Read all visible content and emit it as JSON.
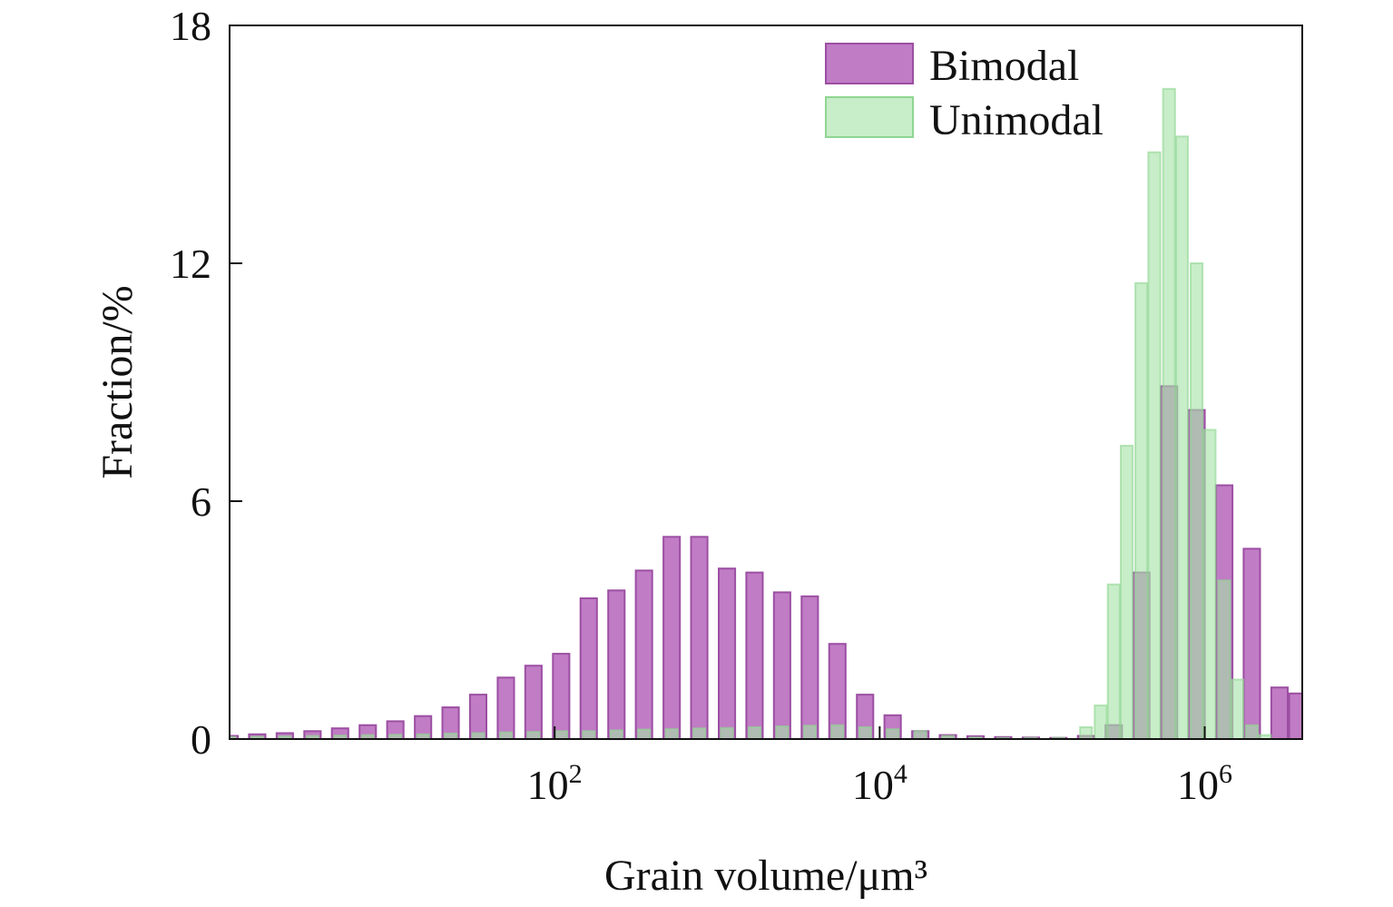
{
  "chart_data": {
    "type": "bar",
    "xlabel": "Grain volume/μm³",
    "ylabel": "Fraction/%",
    "xscale": "log",
    "xlim_log10": [
      0.0,
      6.6
    ],
    "ylim": [
      0,
      18
    ],
    "yticks": [
      "0",
      "6",
      "12",
      "18"
    ],
    "xticks": [
      {
        "log10": 2,
        "base": "10",
        "exp": "2"
      },
      {
        "log10": 4,
        "base": "10",
        "exp": "4"
      },
      {
        "log10": 6,
        "base": "10",
        "exp": "6"
      }
    ],
    "legend_position": "top-right",
    "grid": false,
    "series": [
      {
        "name": "Bimodal",
        "color": "#c07cc4",
        "edge": "#9c4fa3",
        "opacity": 1.0,
        "log10_x": [
          0.0,
          0.17,
          0.34,
          0.51,
          0.68,
          0.85,
          1.02,
          1.19,
          1.36,
          1.53,
          1.7,
          1.87,
          2.04,
          2.21,
          2.38,
          2.55,
          2.72,
          2.89,
          3.06,
          3.23,
          3.4,
          3.57,
          3.74,
          3.91,
          4.08,
          4.25,
          4.42,
          4.59,
          4.76,
          4.93,
          5.1,
          5.27,
          5.44,
          5.61,
          5.78,
          5.95,
          6.12,
          6.29,
          6.46,
          6.57
        ],
        "values": [
          0.08,
          0.12,
          0.15,
          0.2,
          0.27,
          0.35,
          0.45,
          0.58,
          0.8,
          1.12,
          1.55,
          1.85,
          2.15,
          3.55,
          3.75,
          4.25,
          5.1,
          5.1,
          4.3,
          4.2,
          3.7,
          3.6,
          2.4,
          1.12,
          0.6,
          0.2,
          0.1,
          0.07,
          0.05,
          0.04,
          0.03,
          0.08,
          0.35,
          4.2,
          8.9,
          8.3,
          6.4,
          4.8,
          1.3,
          1.15
        ]
      },
      {
        "name": "Unimodal",
        "color": "#a7e2a8",
        "edge": "#8fd692",
        "opacity": 0.62,
        "log10_x": [
          0.0,
          0.17,
          0.34,
          0.51,
          0.68,
          0.85,
          1.02,
          1.19,
          1.36,
          1.53,
          1.7,
          1.87,
          2.04,
          2.21,
          2.38,
          2.55,
          2.72,
          2.89,
          3.06,
          3.23,
          3.4,
          3.57,
          3.74,
          3.91,
          4.08,
          4.25,
          4.42,
          4.59,
          4.76,
          4.93,
          5.1,
          5.27,
          5.36,
          5.44,
          5.52,
          5.61,
          5.69,
          5.78,
          5.86,
          5.95,
          6.03,
          6.12,
          6.2,
          6.29,
          6.37
        ],
        "values": [
          0.05,
          0.06,
          0.07,
          0.08,
          0.09,
          0.1,
          0.11,
          0.12,
          0.14,
          0.15,
          0.17,
          0.18,
          0.2,
          0.2,
          0.22,
          0.24,
          0.25,
          0.27,
          0.28,
          0.3,
          0.32,
          0.34,
          0.35,
          0.3,
          0.25,
          0.2,
          0.08,
          0.04,
          0.03,
          0.03,
          0.03,
          0.3,
          0.85,
          3.9,
          7.4,
          11.5,
          14.8,
          16.4,
          15.2,
          12.0,
          7.8,
          4.0,
          1.5,
          0.35,
          0.1
        ]
      }
    ]
  }
}
